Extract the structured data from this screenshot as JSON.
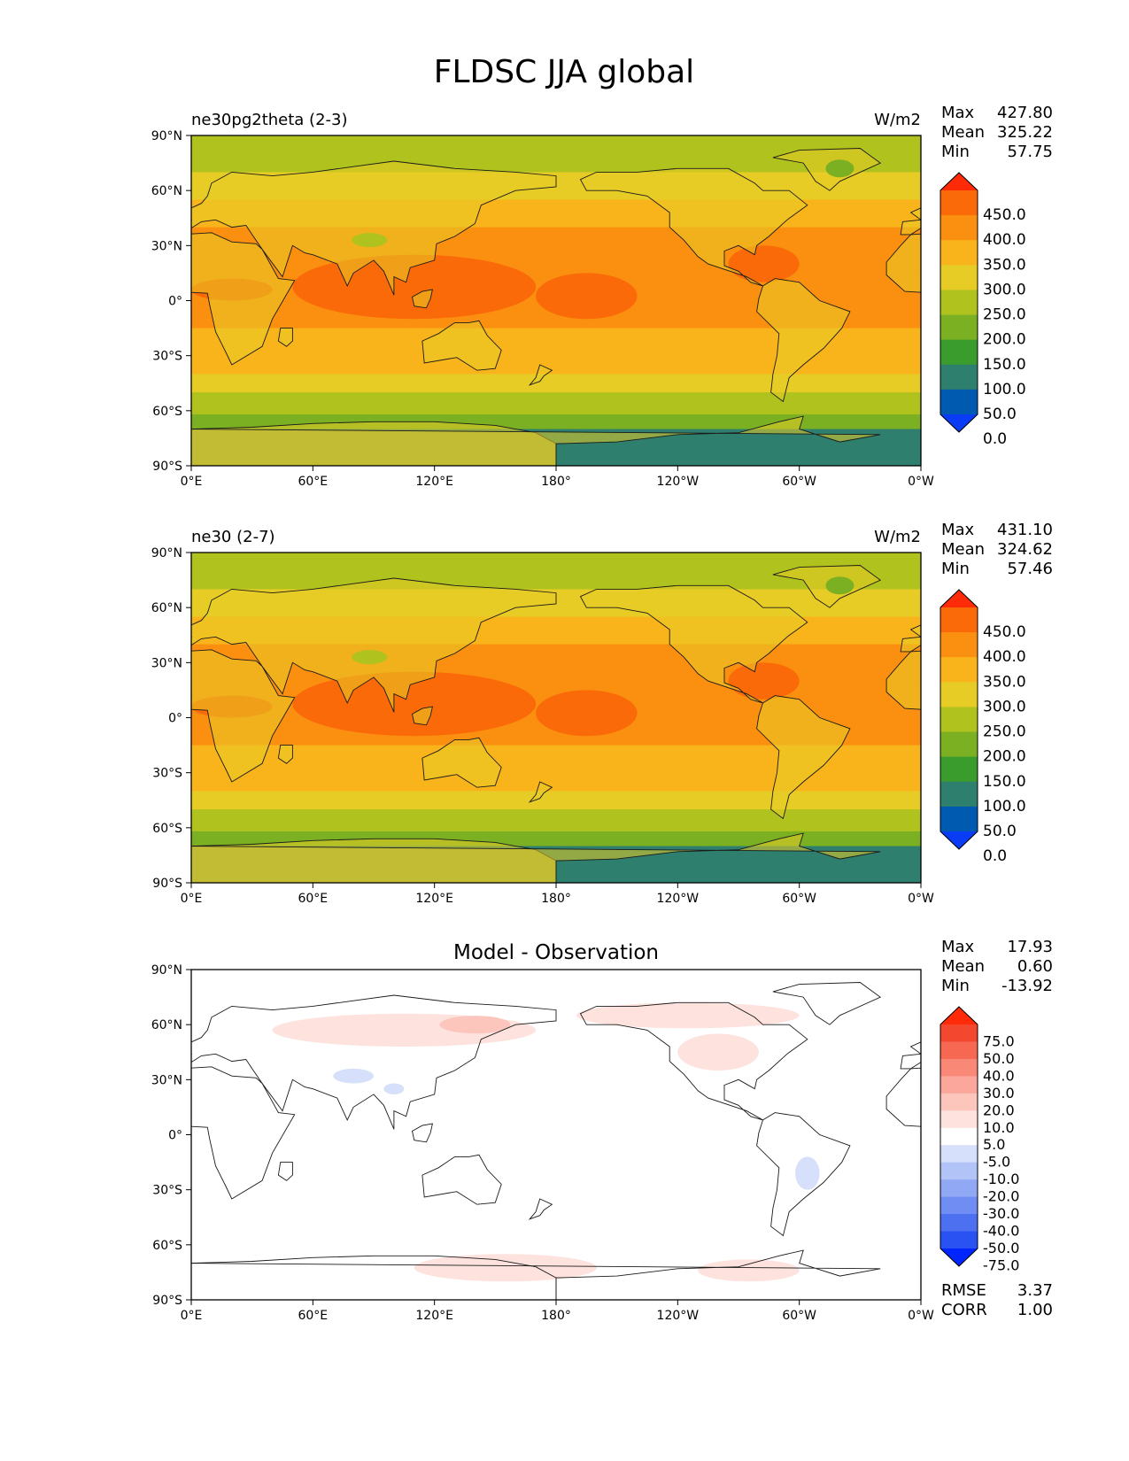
{
  "title": "FLDSC JJA global",
  "axes": {
    "lat_ticks": [
      "90°N",
      "60°N",
      "30°N",
      "0°",
      "30°S",
      "60°S",
      "90°S"
    ],
    "lon_ticks": [
      "0°E",
      "60°E",
      "120°E",
      "180°",
      "120°W",
      "60°W",
      "0°W"
    ]
  },
  "stat_labels": {
    "max": "Max",
    "mean": "Mean",
    "min": "Min",
    "rmse": "RMSE",
    "corr": "CORR"
  },
  "colors": {
    "field": [
      "#0a3cf5",
      "#005bb0",
      "#2e7f6e",
      "#3a9c2d",
      "#7bb022",
      "#b0c21e",
      "#e8cc26",
      "#f9b41c",
      "#fb9010",
      "#fa6a08",
      "#ff2a08"
    ],
    "diff": [
      "#0025ff",
      "#2a52f2",
      "#4d70f0",
      "#6f8df2",
      "#91a8f4",
      "#b2c3f7",
      "#d6e0fb",
      "#ffffff",
      "#fde2de",
      "#fcc6bd",
      "#fba79b",
      "#f98877",
      "#f76853",
      "#f4472f",
      "#ff2a08"
    ],
    "ocean_warm": "#f9b41c",
    "diff_bg": "#ffffff"
  },
  "chart_data": [
    {
      "type": "heatmap",
      "name": "panel-1",
      "title_left": "ne30pg2theta (2-3)",
      "units": "W/m2",
      "stats": {
        "max": "427.80",
        "mean": "325.22",
        "min": "57.75"
      },
      "colorbar_levels": [
        "450.0",
        "400.0",
        "350.0",
        "300.0",
        "250.0",
        "200.0",
        "150.0",
        "100.0",
        "50.0",
        "0.0"
      ],
      "xlim": [
        0,
        360
      ],
      "ylim": [
        -90,
        90
      ],
      "zonal_bands": [
        {
          "lat": [
            70,
            90
          ],
          "value": 225
        },
        {
          "lat": [
            55,
            70
          ],
          "value": 275
        },
        {
          "lat": [
            40,
            55
          ],
          "value": 320
        },
        {
          "lat": [
            -15,
            40
          ],
          "value": 370
        },
        {
          "lat": [
            -40,
            -15
          ],
          "value": 330
        },
        {
          "lat": [
            -50,
            -40
          ],
          "value": 280
        },
        {
          "lat": [
            -62,
            -50
          ],
          "value": 230
        },
        {
          "lat": [
            -70,
            -62
          ],
          "value": 180
        },
        {
          "lat": [
            -90,
            -70
          ],
          "value": 90
        }
      ]
    },
    {
      "type": "heatmap",
      "name": "panel-2",
      "title_left": "ne30 (2-7)",
      "units": "W/m2",
      "stats": {
        "max": "431.10",
        "mean": "324.62",
        "min": "57.46"
      },
      "colorbar_levels": [
        "450.0",
        "400.0",
        "350.0",
        "300.0",
        "250.0",
        "200.0",
        "150.0",
        "100.0",
        "50.0",
        "0.0"
      ],
      "xlim": [
        0,
        360
      ],
      "ylim": [
        -90,
        90
      ],
      "zonal_bands": [
        {
          "lat": [
            70,
            90
          ],
          "value": 225
        },
        {
          "lat": [
            55,
            70
          ],
          "value": 275
        },
        {
          "lat": [
            40,
            55
          ],
          "value": 320
        },
        {
          "lat": [
            -15,
            40
          ],
          "value": 370
        },
        {
          "lat": [
            -40,
            -15
          ],
          "value": 330
        },
        {
          "lat": [
            -50,
            -40
          ],
          "value": 280
        },
        {
          "lat": [
            -62,
            -50
          ],
          "value": 230
        },
        {
          "lat": [
            -70,
            -62
          ],
          "value": 180
        },
        {
          "lat": [
            -90,
            -70
          ],
          "value": 90
        }
      ]
    },
    {
      "type": "heatmap",
      "name": "panel-3",
      "title_center": "Model - Observation",
      "stats": {
        "max": "17.93",
        "mean": "0.60",
        "min": "-13.92"
      },
      "rmse": "3.37",
      "corr": "1.00",
      "colorbar_levels": [
        "75.0",
        "50.0",
        "40.0",
        "30.0",
        "20.0",
        "10.0",
        "5.0",
        "-5.0",
        "-10.0",
        "-20.0",
        "-30.0",
        "-40.0",
        "-50.0",
        "-75.0"
      ],
      "xlim": [
        0,
        360
      ],
      "ylim": [
        -90,
        90
      ]
    }
  ]
}
